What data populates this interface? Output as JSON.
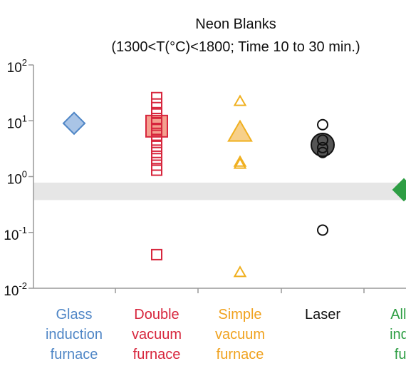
{
  "chart_data": {
    "type": "scatter",
    "title": "Neon Blanks",
    "subtitle": "(1300<T(°C)<1800; Time 10 to 30 min.)",
    "y_scale": "log",
    "ylim": [
      0.01,
      100
    ],
    "y_ticks": [
      {
        "value": 100,
        "base": "10",
        "exp": "2"
      },
      {
        "value": 10,
        "base": "10",
        "exp": "1"
      },
      {
        "value": 1,
        "base": "10",
        "exp": "0"
      },
      {
        "value": 0.1,
        "base": "10",
        "exp": "-1"
      },
      {
        "value": 0.01,
        "base": "10",
        "exp": "-2"
      }
    ],
    "band": {
      "from": 0.38,
      "to": 0.78,
      "color": "#e6e6e6"
    },
    "grid": false,
    "categories": [
      {
        "lines": [
          "Glass",
          "induction",
          "furnace"
        ],
        "color": "#4f86c6"
      },
      {
        "lines": [
          "Double",
          "vacuum",
          "furnace"
        ],
        "color": "#d7263d"
      },
      {
        "lines": [
          "Simple",
          "vacuum",
          "furnace"
        ],
        "color": "#f0a21e"
      },
      {
        "lines": [
          "Laser"
        ],
        "color": "#111111"
      },
      {
        "lines": [
          "All-m",
          "induc",
          "furn"
        ],
        "color": "#2e9e44"
      }
    ],
    "series": [
      {
        "category": 0,
        "marker": "diamond",
        "color": "#4f86c6",
        "fill": "#a9c4e6",
        "values": [
          9
        ],
        "mean": 9
      },
      {
        "category": 1,
        "marker": "square",
        "color": "#d7263d",
        "fill": "#f4a08f",
        "values": [
          26,
          20,
          14,
          11,
          9,
          7,
          5.5,
          4.5,
          3.5,
          2.7,
          2.1,
          1.6,
          1.3,
          0.04
        ],
        "mean": 8
      },
      {
        "category": 2,
        "marker": "triangle",
        "color": "#f0b020",
        "fill": "#f7d08a",
        "values": [
          22,
          1.8,
          1.65,
          0.019
        ],
        "mean": 6
      },
      {
        "category": 3,
        "marker": "circle",
        "color": "#111111",
        "fill": "#555555",
        "values": [
          8.5,
          4.5,
          3.3,
          2.7,
          0.11
        ],
        "mean": 3.7
      },
      {
        "category": 4,
        "marker": "diamond",
        "color": "#2e9e44",
        "fill": "#2e9e44",
        "values": [
          0.58
        ],
        "mean": 0.58
      }
    ]
  }
}
